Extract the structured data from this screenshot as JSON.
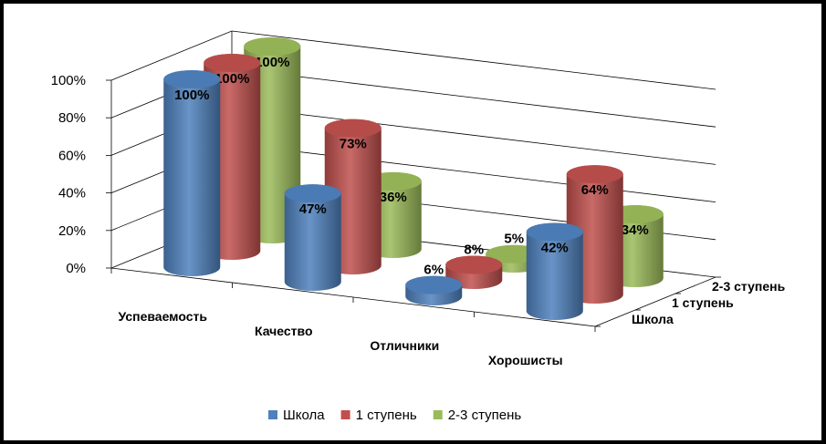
{
  "chart_data": {
    "type": "bar",
    "style": "3d-cylinder",
    "categories": [
      "Успеваемость",
      "Качество",
      "Отличники",
      "Хорошисты"
    ],
    "series": [
      {
        "name": "Школа",
        "values": [
          100,
          47,
          6,
          42
        ],
        "labels": [
          "100%",
          "47%",
          "6%",
          "42%"
        ],
        "color": "#4f81bd"
      },
      {
        "name": "1 ступень",
        "values": [
          100,
          73,
          8,
          64
        ],
        "labels": [
          "100%",
          "73%",
          "8%",
          "64%"
        ],
        "color": "#c0504d"
      },
      {
        "name": "2-3 ступень",
        "values": [
          100,
          36,
          5,
          34
        ],
        "labels": [
          "100%",
          "36%",
          "5%",
          "34%"
        ],
        "color": "#9bbb59"
      }
    ],
    "yticks": [
      "0%",
      "20%",
      "40%",
      "60%",
      "80%",
      "100%"
    ],
    "ylim": [
      0,
      100
    ],
    "grid": true,
    "legend": "bottom"
  }
}
